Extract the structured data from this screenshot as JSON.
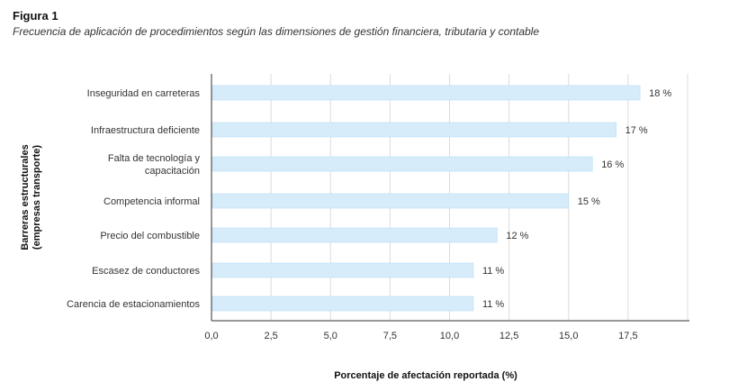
{
  "figure": {
    "label": "Figura 1",
    "caption": "Frecuencia de aplicación de procedimientos según las dimensiones de gestión financiera, tributaria y contable"
  },
  "colors": {
    "bar_fill": "#d6ecfb",
    "bar_stroke": "#b9dcf4",
    "grid": "#dcdcdc",
    "axis": "#333333",
    "text": "#333333"
  },
  "chart_data": {
    "type": "bar",
    "orientation": "horizontal",
    "categories": [
      "Inseguridad en carreteras",
      "Infraestructura deficiente",
      "Falta de tecnología y capacitación",
      "Competencia informal",
      "Precio del combustible",
      "Escasez de conductores",
      "Carencia de estacionamientos"
    ],
    "category_lines": [
      [
        "Inseguridad en carreteras"
      ],
      [
        "Infraestructura deficiente"
      ],
      [
        "Falta de tecnología y",
        "capacitación"
      ],
      [
        "Competencia informal"
      ],
      [
        "Precio del combustible"
      ],
      [
        "Escasez de conductores"
      ],
      [
        "Carencia de estacionamientos"
      ]
    ],
    "values": [
      18,
      17,
      16,
      15,
      12,
      11,
      11
    ],
    "value_labels": [
      "18 %",
      "17 %",
      "16 %",
      "15 %",
      "12 %",
      "11 %",
      "11 %"
    ],
    "xticks": [
      0,
      2.5,
      5,
      7.5,
      10,
      12.5,
      15,
      17.5
    ],
    "xtick_labels": [
      "0,0",
      "2,5",
      "5,0",
      "7,5",
      "10,0",
      "12,5",
      "15,0",
      "17,5"
    ],
    "xlim": [
      0,
      20
    ],
    "xlabel": "Porcentaje de afectación reportada (%)",
    "ylabel_lines": [
      "Barreras estructurales",
      "(empresas transporte)"
    ],
    "grid": "vertical"
  }
}
